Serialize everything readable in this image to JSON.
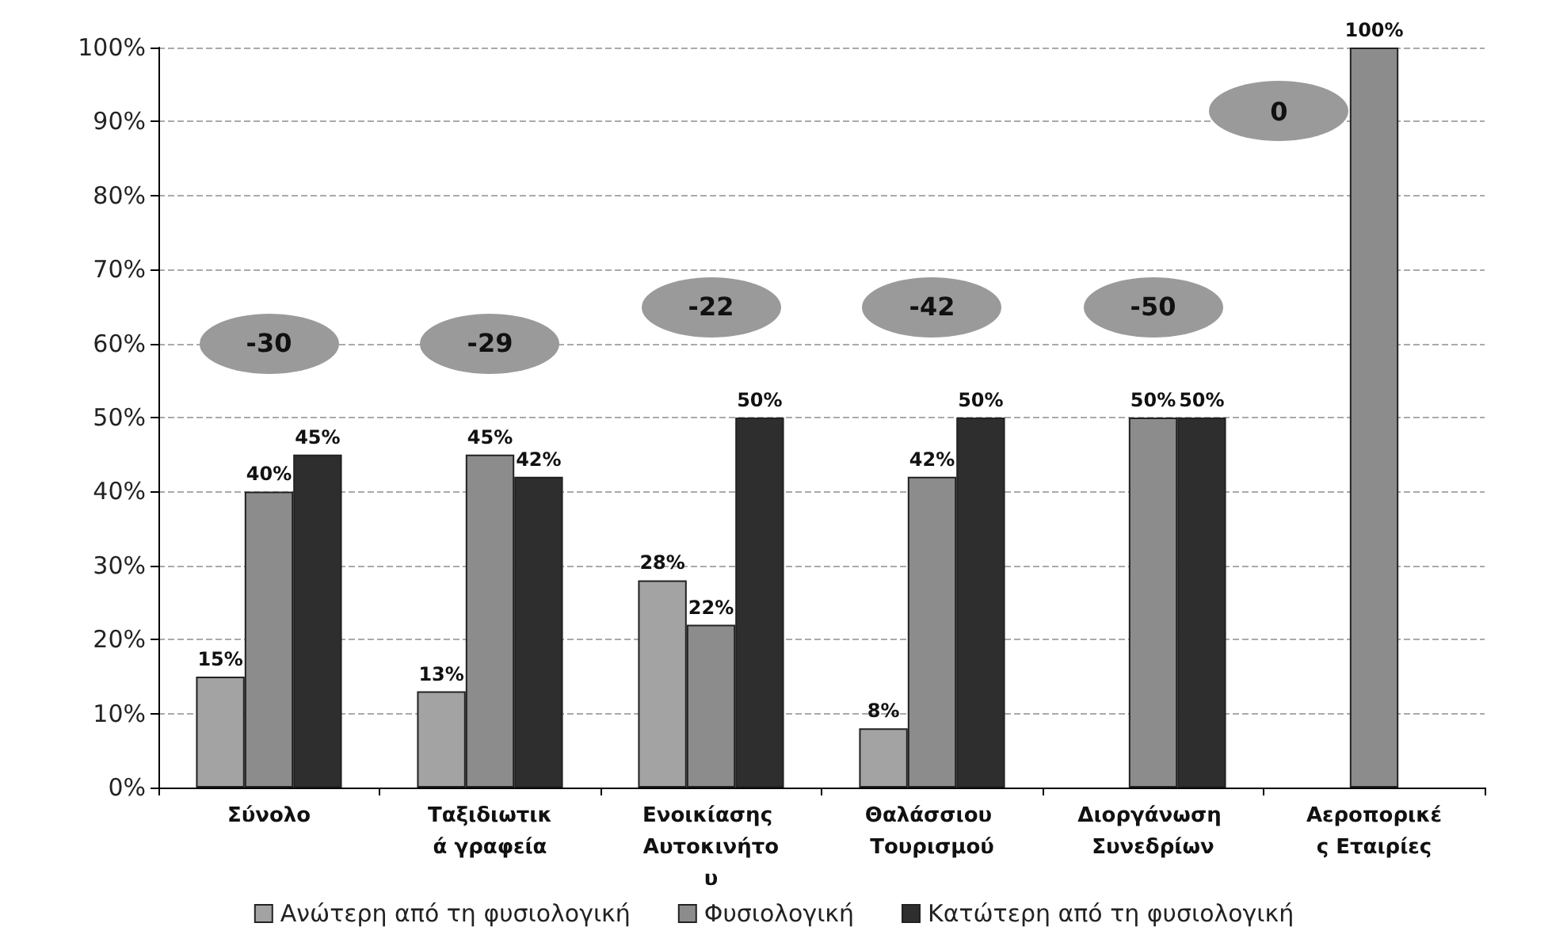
{
  "chart_data": {
    "type": "bar",
    "categories": [
      "Σύνολο",
      "Ταξιδιωτικά γραφεία",
      "Ενοικίασης Αυτοκινήτου",
      "Θαλάσσιου Τουρισμού",
      "Διοργάνωση Συνεδρίων",
      "Αεροπορικές Εταιρίες"
    ],
    "series": [
      {
        "name": "Ανώτερη από τη φυσιολογική",
        "color": "#a3a3a3",
        "values": [
          15,
          13,
          28,
          8,
          null,
          null
        ],
        "value_labels": [
          "15%",
          "13%",
          "28%",
          "8%",
          null,
          null
        ]
      },
      {
        "name": "Φυσιολογική",
        "color": "#8c8c8c",
        "values": [
          40,
          45,
          22,
          42,
          50,
          100
        ],
        "value_labels": [
          "40%",
          "45%",
          "22%",
          "42%",
          "50%",
          "100%"
        ]
      },
      {
        "name": "Κατώτερη από τη φυσιολογική",
        "color": "#2e2e2e",
        "values": [
          45,
          42,
          50,
          50,
          50,
          null
        ],
        "value_labels": [
          "45%",
          "42%",
          "50%",
          "50%",
          "50%",
          null
        ]
      }
    ],
    "ylim": [
      0,
      100
    ],
    "yticks": [
      {
        "value": 0,
        "label": "0%"
      },
      {
        "value": 10,
        "label": "10%"
      },
      {
        "value": 20,
        "label": "20%"
      },
      {
        "value": 30,
        "label": "30%"
      },
      {
        "value": 40,
        "label": "40%"
      },
      {
        "value": 50,
        "label": "50%"
      },
      {
        "value": 60,
        "label": "60%"
      },
      {
        "value": 70,
        "label": "70%"
      },
      {
        "value": 80,
        "label": "80%"
      },
      {
        "value": 90,
        "label": "90%"
      },
      {
        "value": 100,
        "label": "100%"
      }
    ],
    "annotations": [
      "-30",
      "-29",
      "-22",
      "-42",
      "-50",
      "0"
    ],
    "grid": "y",
    "legend": "bottom"
  }
}
